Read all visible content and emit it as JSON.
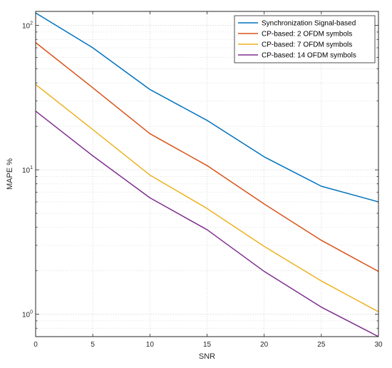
{
  "chart_data": {
    "type": "line",
    "title": "",
    "xlabel": "SNR",
    "ylabel": "MAPE %",
    "x": [
      0,
      5,
      10,
      15,
      20,
      25,
      30
    ],
    "xlim": [
      0,
      30
    ],
    "ylim": [
      0.7,
      125
    ],
    "yscale": "log",
    "grid": true,
    "legend_position": "top-right",
    "x_ticks": [
      "0",
      "5",
      "10",
      "15",
      "20",
      "25",
      "30"
    ],
    "y_ticks": [
      {
        "base": "10",
        "exp": "0"
      },
      {
        "base": "10",
        "exp": "1"
      },
      {
        "base": "10",
        "exp": "2"
      }
    ],
    "series": [
      {
        "name": "Synchronization Signal-based",
        "color": "#0072BD",
        "values": [
          122,
          70,
          36,
          22,
          12.3,
          7.7,
          6.0
        ]
      },
      {
        "name": "CP-based: 2 OFDM symbols",
        "color": "#D95319",
        "values": [
          76,
          37,
          17.8,
          10.7,
          5.8,
          3.25,
          1.98
        ]
      },
      {
        "name": "CP-based: 7 OFDM symbols",
        "color": "#EDB120",
        "values": [
          39,
          19,
          9.2,
          5.4,
          2.95,
          1.7,
          1.04
        ]
      },
      {
        "name": "CP-based: 14 OFDM symbols",
        "color": "#7E2F8E",
        "values": [
          25.5,
          12.5,
          6.4,
          3.85,
          1.98,
          1.12,
          0.7
        ]
      }
    ]
  }
}
